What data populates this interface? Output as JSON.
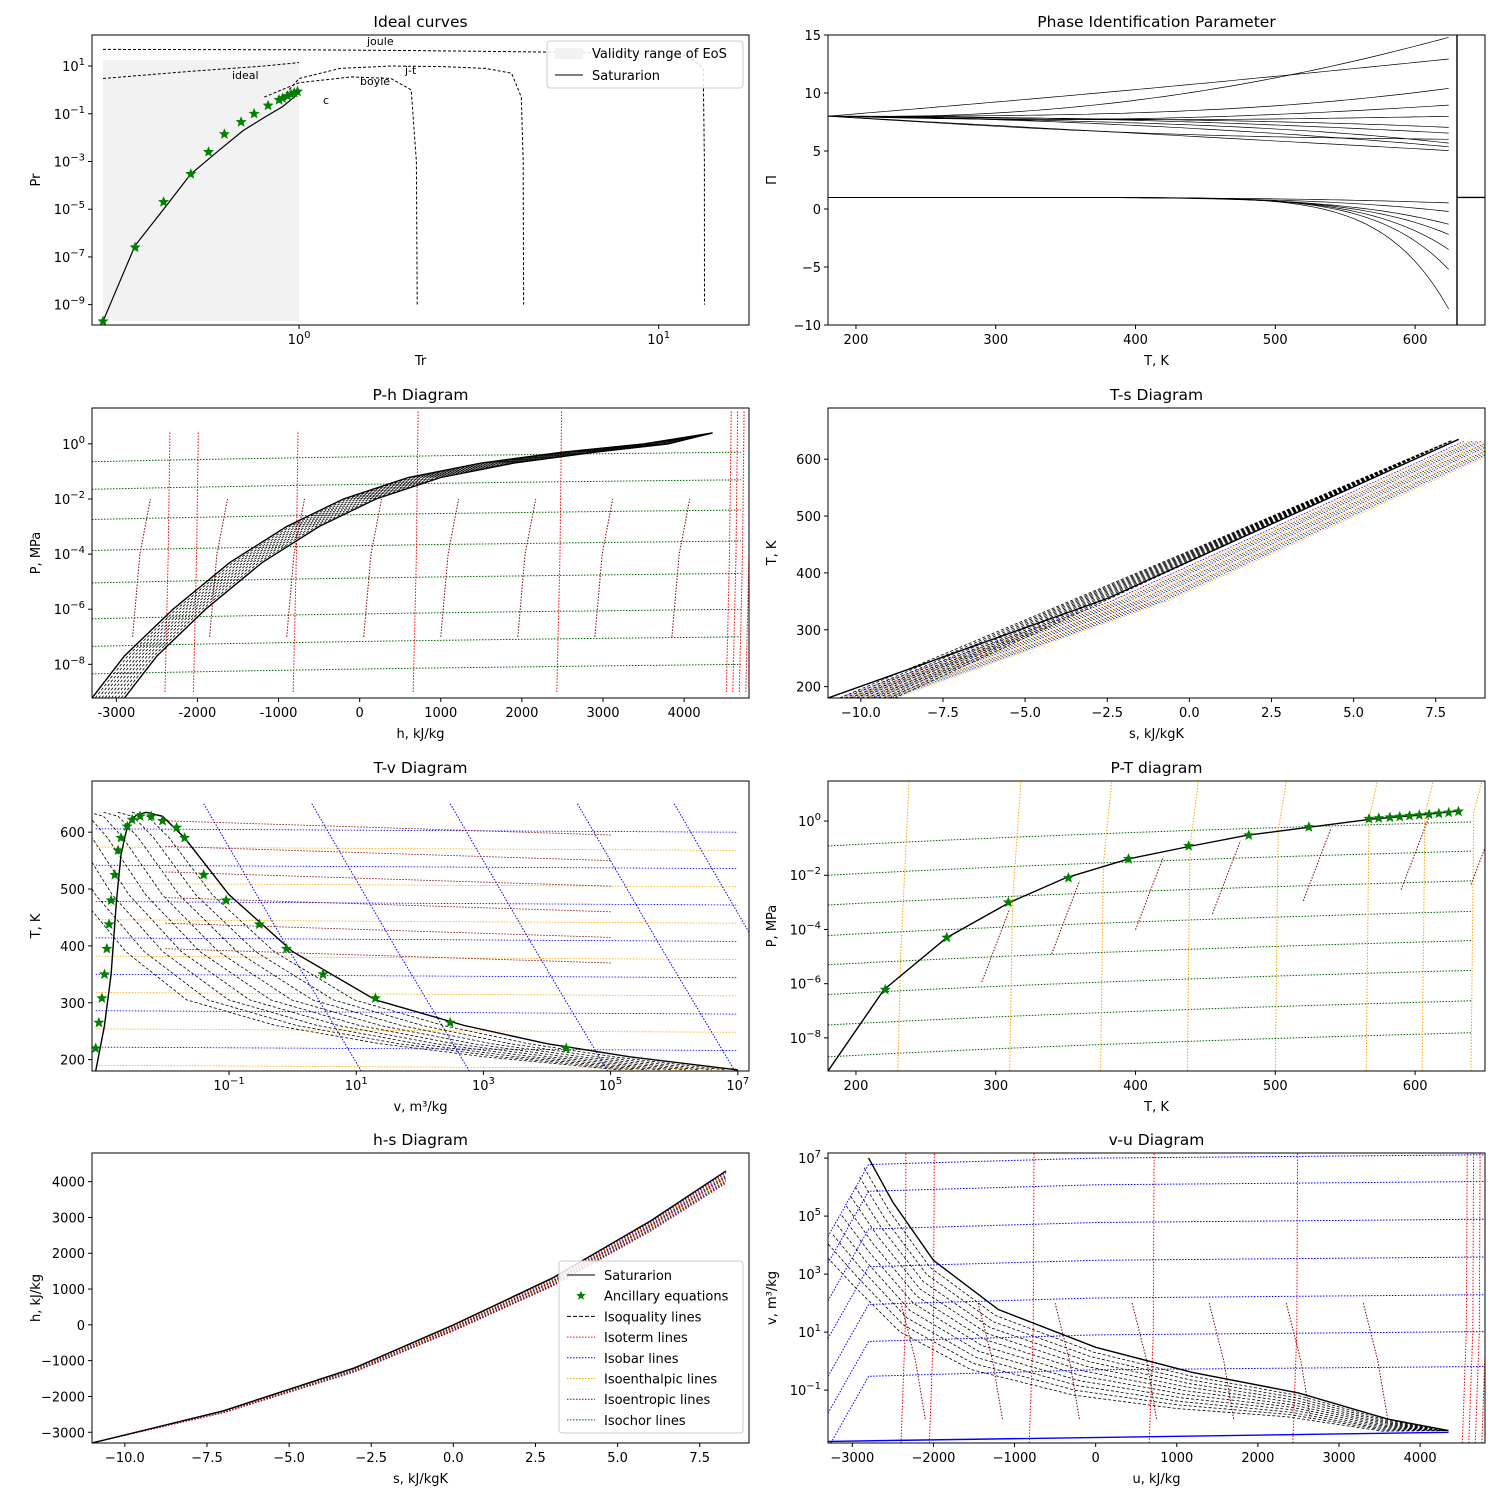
{
  "colors": {
    "saturation": "#000000",
    "ancillary": "#008000",
    "isoquality": "#000000",
    "isotherm": "#ff0000",
    "isobar": "#0000ff",
    "isoenthalpic": "#ffa500",
    "isoentropic": "#800000",
    "isochor": "#006400",
    "validity": "#f2f2f2"
  },
  "legend": {
    "saturation": "Saturarion",
    "ancillary": "Ancillary equations",
    "isoquality": "Isoquality lines",
    "isotherm": "Isoterm lines",
    "isobar": "Isobar lines",
    "isoenthalpic": "Isoenthalpic lines",
    "isoentropic": "Isoentropic lines",
    "isochor": "Isochor lines",
    "validity": "Validity range of EoS"
  },
  "chart_data": [
    {
      "id": "ideal",
      "type": "line",
      "title": "Ideal curves",
      "xlabel": "Tr",
      "ylabel": "Pr",
      "xscale": "log",
      "yscale": "log",
      "xlim": [
        0.2656,
        17.83
      ],
      "ylim": [
        1.4e-10,
        200
      ],
      "xticks": [
        1,
        10
      ],
      "yticks": [
        1e-09,
        1e-07,
        1e-05,
        0.001,
        0.1,
        10
      ],
      "legend_position": "upper right",
      "annotations": [
        "joule",
        "ideal",
        "j-t",
        "boyle",
        "c"
      ],
      "series": [
        {
          "name": "joule",
          "x": [
            0.285,
            1.0,
            2.0,
            4.0,
            8.0,
            12.0,
            13.3,
            13.4,
            13.41
          ],
          "y": [
            50,
            48,
            45,
            40,
            35,
            28,
            8,
            0.001,
            1e-09
          ]
        },
        {
          "name": "ideal",
          "x": [
            0.285,
            0.5,
            0.8,
            1.0
          ],
          "y": [
            3,
            6,
            10,
            14
          ]
        },
        {
          "name": "j-t",
          "x": [
            0.9,
            1.0,
            1.3,
            1.8,
            2.5,
            3.3,
            3.9,
            4.15,
            4.2,
            4.21
          ],
          "y": [
            0.5,
            3,
            8,
            10,
            9.5,
            8,
            5,
            0.5,
            0.001,
            1e-09
          ]
        },
        {
          "name": "boyle",
          "x": [
            0.8,
            1.0,
            1.4,
            1.8,
            2.05,
            2.12,
            2.13
          ],
          "y": [
            0.5,
            2,
            3.5,
            3,
            1,
            0.001,
            1e-09
          ]
        },
        {
          "name": "Saturarion",
          "x": [
            0.285,
            0.35,
            0.42,
            0.5,
            0.6,
            0.7,
            0.8,
            0.9,
            0.97,
            1.0
          ],
          "y": [
            2e-10,
            3e-07,
            1e-05,
            0.0003,
            0.003,
            0.02,
            0.07,
            0.2,
            0.5,
            0.8
          ]
        }
      ],
      "markers": {
        "name": "Ancillary equations",
        "x": [
          0.285,
          0.35,
          0.42,
          0.5,
          0.56,
          0.62,
          0.69,
          0.75,
          0.82,
          0.88,
          0.9,
          0.93,
          0.95,
          0.97,
          0.99
        ],
        "y": [
          2e-10,
          2.5e-07,
          2e-05,
          0.0003,
          0.0025,
          0.014,
          0.045,
          0.1,
          0.22,
          0.38,
          0.45,
          0.55,
          0.65,
          0.75,
          0.85
        ]
      },
      "validity_range": {
        "x": [
          0.285,
          1.0
        ],
        "y": [
          2e-10,
          18
        ]
      }
    },
    {
      "id": "pip",
      "type": "line",
      "title": "Phase Identification Parameter",
      "xlabel": "T, K",
      "ylabel": "Π",
      "xlim": [
        180,
        650
      ],
      "ylim": [
        -10,
        15
      ],
      "xticks": [
        200,
        300,
        400,
        500,
        600
      ],
      "yticks": [
        -10,
        -5,
        0,
        5,
        10,
        15
      ],
      "liquid_start": 8,
      "vapor_start": 1.0,
      "liquid_ends": [
        5,
        5.3,
        5.6,
        6,
        6.5,
        7,
        8,
        9,
        10.5,
        13,
        15
      ],
      "vapor_ends": [
        0.5,
        -0.3,
        -1.5,
        -2.5,
        -4,
        -6,
        -10
      ],
      "divergence_T": 630
    },
    {
      "id": "ph",
      "type": "line",
      "title": "P-h Diagram",
      "xlabel": "h, kJ/kg",
      "ylabel": "P, MPa",
      "xlim": [
        -3300,
        4800
      ],
      "ylim": [
        6e-10,
        20
      ],
      "yscale": "log",
      "xticks": [
        -3000,
        -2000,
        -1000,
        0,
        1000,
        2000,
        3000,
        4000
      ],
      "yticks": [
        1e-08,
        1e-06,
        0.0001,
        0.01,
        1
      ],
      "liquid_h": [
        -3300,
        -2900,
        -2300,
        -1600,
        -900,
        -200,
        600,
        1500,
        2500,
        3500,
        4350
      ],
      "vapor_h": [
        -2900,
        -2500,
        -1900,
        -1200,
        -500,
        200,
        1000,
        1900,
        2900,
        3800,
        4350
      ],
      "saturation_P": [
        6e-10,
        2e-08,
        1e-06,
        5e-05,
        0.001,
        0.01,
        0.06,
        0.2,
        0.5,
        1.0,
        2.5
      ],
      "isotherm_h": [
        -2400,
        -2050,
        -820,
        660,
        2430,
        4520,
        4600,
        4680,
        4760
      ],
      "isochor_P": [
        1e-08,
        1e-07,
        1e-06,
        2e-05,
        0.0003,
        0.004,
        0.05,
        0.5
      ]
    },
    {
      "id": "ts",
      "type": "line",
      "title": "T-s Diagram",
      "xlabel": "s, kJ/kgK",
      "ylabel": "T, K",
      "xlim": [
        -11,
        9
      ],
      "ylim": [
        180,
        690
      ],
      "xticks": [
        -10,
        -7.5,
        -5,
        -2.5,
        0,
        2.5,
        5,
        7.5
      ],
      "xtick_labels": [
        "−10.0",
        "−7.5",
        "−5.0",
        "−2.5",
        "0.0",
        "2.5",
        "5.0",
        "7.5"
      ],
      "yticks": [
        200,
        300,
        400,
        500,
        600
      ],
      "saturation": {
        "x": [
          -11,
          -2.5,
          8.2
        ],
        "y": [
          180,
          355,
          635
        ]
      },
      "band_offsets": [
        0.3,
        0.7,
        1.1,
        1.6
      ]
    },
    {
      "id": "tv",
      "type": "line",
      "title": "T-v Diagram",
      "xlabel": "v, m³/kg",
      "ylabel": "T, K",
      "xscale": "log",
      "xlim": [
        0.0007,
        15000000
      ],
      "ylim": [
        180,
        690
      ],
      "xticks": [
        0.1,
        10,
        1000,
        100000,
        10000000
      ],
      "yticks": [
        200,
        300,
        400,
        500,
        600
      ],
      "saturation_liquid": {
        "x": [
          0.0008,
          0.0011,
          0.0014,
          0.0017,
          0.002,
          0.0024,
          0.0028,
          0.0035,
          0.005
        ],
        "y": [
          180,
          260,
          350,
          480,
          560,
          600,
          620,
          630,
          635
        ]
      },
      "saturation_vapor": {
        "x": [
          0.005,
          0.009,
          0.02,
          0.1,
          1,
          20,
          500,
          10000,
          200000,
          10000000
        ],
        "y": [
          635,
          628,
          590,
          490,
          390,
          305,
          260,
          228,
          205,
          182
        ]
      },
      "markers": {
        "x": [
          0.0008,
          0.0009,
          0.001,
          0.0011,
          0.0012,
          0.0013,
          0.0014,
          0.0016,
          0.0018,
          0.002,
          0.0025,
          0.003,
          0.004,
          0.006,
          0.009,
          0.015,
          0.02,
          0.04,
          0.09,
          0.3,
          0.8,
          3,
          20,
          300,
          20000
        ],
        "y": [
          220,
          265,
          308,
          350,
          395,
          438,
          480,
          525,
          568,
          590,
          610,
          622,
          628,
          628,
          620,
          608,
          590,
          525,
          480,
          438,
          395,
          350,
          308,
          265,
          220
        ]
      }
    },
    {
      "id": "pt",
      "type": "line",
      "title": "P-T diagram",
      "xlabel": "T, K",
      "ylabel": "P, MPa",
      "xlim": [
        180,
        650
      ],
      "ylim": [
        6e-10,
        30
      ],
      "yscale": "log",
      "xticks": [
        200,
        300,
        400,
        500,
        600
      ],
      "yticks": [
        1e-08,
        1e-06,
        0.0001,
        0.01,
        1
      ],
      "saturation": {
        "x": [
          180,
          220,
          265,
          310,
          350,
          395,
          440,
          480,
          525,
          570,
          600,
          630
        ],
        "y": [
          6e-10,
          6e-07,
          5e-05,
          0.001,
          0.008,
          0.04,
          0.12,
          0.3,
          0.6,
          1.2,
          1.6,
          2.3
        ]
      },
      "markers": {
        "x": [
          221,
          265,
          309,
          352,
          395,
          438,
          481,
          524,
          567,
          574,
          582,
          589,
          596,
          603,
          610,
          617,
          624,
          631
        ],
        "y": [
          6e-07,
          5e-05,
          0.001,
          0.008,
          0.04,
          0.12,
          0.3,
          0.6,
          1.2,
          1.28,
          1.36,
          1.45,
          1.55,
          1.65,
          1.76,
          1.9,
          2.05,
          2.25
        ]
      },
      "isochor_P": [
        2e-09,
        3e-08,
        4e-07,
        5e-06,
        6e-05,
        0.0008,
        0.01,
        0.12
      ],
      "isoenthalpic_T": [
        230,
        310,
        375,
        437,
        500,
        565,
        605,
        640
      ],
      "isoentropic_T": [
        290,
        340,
        400,
        455,
        520,
        590,
        640
      ]
    },
    {
      "id": "hs",
      "type": "line",
      "title": "h-s Diagram",
      "xlabel": "s, kJ/kgK",
      "ylabel": "h, kJ/kg",
      "xlim": [
        -11,
        9
      ],
      "ylim": [
        -3300,
        4800
      ],
      "xticks": [
        -10,
        -7.5,
        -5,
        -2.5,
        0,
        2.5,
        5,
        7.5
      ],
      "xtick_labels": [
        "−10.0",
        "−7.5",
        "−5.0",
        "−2.5",
        "0.0",
        "2.5",
        "5.0",
        "7.5"
      ],
      "yticks": [
        -3000,
        -2000,
        -1000,
        0,
        1000,
        2000,
        3000,
        4000
      ],
      "ytick_labels": [
        "−3000",
        "−2000",
        "−1000",
        "0",
        "1000",
        "2000",
        "3000",
        "4000"
      ],
      "saturation": {
        "x": [
          -11,
          -7,
          -3,
          0,
          3,
          6,
          8.3
        ],
        "y": [
          -3300,
          -2400,
          -1200,
          0,
          1300,
          2900,
          4300
        ]
      },
      "legend_position": "lower right"
    },
    {
      "id": "vu",
      "type": "line",
      "title": "v-u Diagram",
      "xlabel": "u, kJ/kg",
      "ylabel": "v, m³/kg",
      "yscale": "log",
      "xlim": [
        -3300,
        4800
      ],
      "ylim": [
        0.0015,
        15000000
      ],
      "xticks": [
        -3000,
        -2000,
        -1000,
        0,
        1000,
        2000,
        3000,
        4000
      ],
      "xtick_labels": [
        "−3000",
        "−2000",
        "−1000",
        "0",
        "1000",
        "2000",
        "3000",
        "4000"
      ],
      "yticks": [
        0.1,
        10,
        1000,
        100000,
        10000000
      ],
      "saturation_vapor": {
        "x": [
          -2800,
          -2500,
          -2000,
          -1200,
          0,
          1200,
          2500,
          3600,
          4350
        ],
        "y": [
          10000000,
          300000,
          3000,
          60,
          3,
          0.4,
          0.08,
          0.01,
          0.004
        ]
      },
      "saturation_liquid": {
        "x": [
          -3300,
          4350
        ],
        "y": [
          0.0017,
          0.0035
        ]
      },
      "isobar_v": [
        0.5,
        8,
        150,
        3000,
        60000,
        1200000,
        10000000
      ],
      "isotherm_u": [
        -2400,
        -2050,
        -820,
        660,
        2430,
        4520,
        4600,
        4680,
        4760
      ]
    }
  ]
}
